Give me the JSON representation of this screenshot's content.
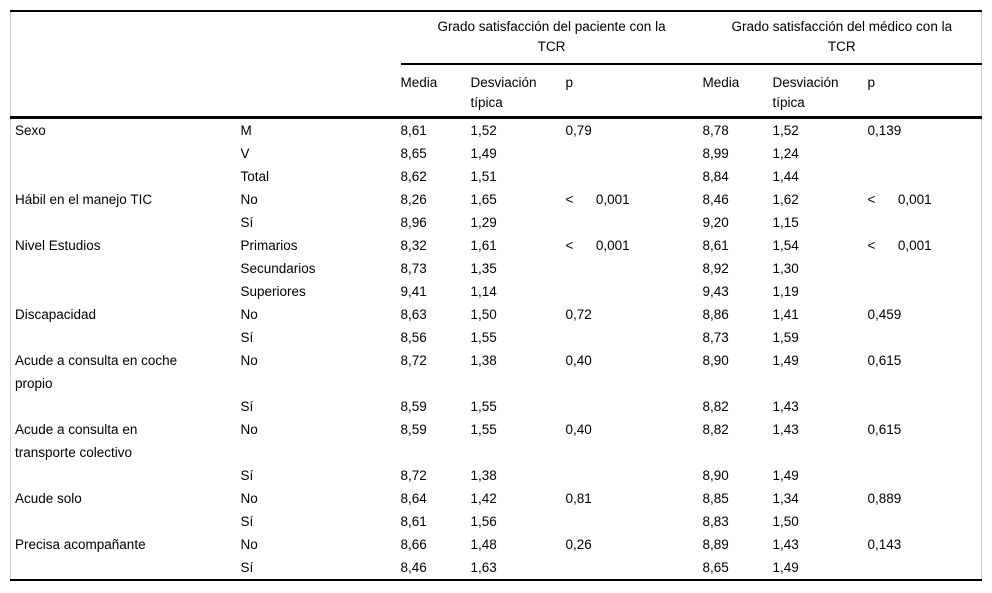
{
  "table": {
    "group_headers": [
      {
        "label": "Grado satisfacción del paciente con la\nTCR"
      },
      {
        "label": "Grado satisfacción del médico con la\nTCR"
      }
    ],
    "sub_headers": {
      "media_paciente": "Media",
      "sd_paciente": "Desviación típica",
      "p_paciente": "p",
      "media_medico": "Media",
      "sd_medico": "Desviación típica",
      "p_medico": "p"
    },
    "rows": [
      {
        "label": "Sexo",
        "category": "M",
        "m1": "8,61",
        "sd1": "1,52",
        "p1": "0,79",
        "m2": "8,78",
        "sd2": "1,52",
        "p2": "0,139"
      },
      {
        "label": "",
        "category": "V",
        "m1": "8,65",
        "sd1": "1,49",
        "p1": "",
        "m2": "8,99",
        "sd2": "1,24",
        "p2": ""
      },
      {
        "label": "",
        "category": "Total",
        "m1": "8,62",
        "sd1": "1,51",
        "p1": "",
        "m2": "8,84",
        "sd2": "1,44",
        "p2": ""
      },
      {
        "label": "Hábil en el manejo TIC",
        "category": "No",
        "m1": "8,26",
        "sd1": "1,65",
        "p1": "<      0,001",
        "m2": "8,46",
        "sd2": "1,62",
        "p2": "<      0,001"
      },
      {
        "label": "",
        "category": "Sí",
        "m1": "8,96",
        "sd1": "1,29",
        "p1": "",
        "m2": "9,20",
        "sd2": "1,15",
        "p2": ""
      },
      {
        "label": "Nivel Estudios",
        "category": "Primarios",
        "m1": "8,32",
        "sd1": "1,61",
        "p1": "<      0,001",
        "m2": "8,61",
        "sd2": "1,54",
        "p2": "<      0,001"
      },
      {
        "label": "",
        "category": "Secundarios",
        "m1": "8,73",
        "sd1": "1,35",
        "p1": "",
        "m2": "8,92",
        "sd2": "1,30",
        "p2": ""
      },
      {
        "label": "",
        "category": "Superiores",
        "m1": "9,41",
        "sd1": "1,14",
        "p1": "",
        "m2": "9,43",
        "sd2": "1,19",
        "p2": ""
      },
      {
        "label": "Discapacidad",
        "category": "No",
        "m1": "8,63",
        "sd1": "1,50",
        "p1": "0,72",
        "m2": "8,86",
        "sd2": "1,41",
        "p2": "0,459"
      },
      {
        "label": "",
        "category": "Sí",
        "m1": "8,56",
        "sd1": "1,55",
        "p1": "",
        "m2": "8,73",
        "sd2": "1,59",
        "p2": ""
      },
      {
        "label": "Acude a consulta en coche\npropio",
        "category": "No",
        "m1": "8,72",
        "sd1": "1,38",
        "p1": "0,40",
        "m2": "8,90",
        "sd2": "1,49",
        "p2": "0,615"
      },
      {
        "label": "",
        "category": "Sí",
        "m1": "8,59",
        "sd1": "1,55",
        "p1": "",
        "m2": "8,82",
        "sd2": "1,43",
        "p2": ""
      },
      {
        "label": "Acude a consulta en\ntransporte colectivo",
        "category": "No",
        "m1": "8,59",
        "sd1": "1,55",
        "p1": "0,40",
        "m2": "8,82",
        "sd2": "1,43",
        "p2": "0,615"
      },
      {
        "label": "",
        "category": "Sí",
        "m1": "8,72",
        "sd1": "1,38",
        "p1": "",
        "m2": "8,90",
        "sd2": "1,49",
        "p2": ""
      },
      {
        "label": "Acude solo",
        "category": "No",
        "m1": "8,64",
        "sd1": "1,42",
        "p1": "0,81",
        "m2": "8,85",
        "sd2": "1,34",
        "p2": "0,889"
      },
      {
        "label": "",
        "category": "Sí",
        "m1": "8,61",
        "sd1": "1,56",
        "p1": "",
        "m2": "8,83",
        "sd2": "1,50",
        "p2": ""
      },
      {
        "label": "Precisa acompañante",
        "category": "No",
        "m1": "8,66",
        "sd1": "1,48",
        "p1": "0,26",
        "m2": "8,89",
        "sd2": "1,43",
        "p2": "0,143"
      },
      {
        "label": "",
        "category": "Sí",
        "m1": "8,46",
        "sd1": "1,63",
        "p1": "",
        "m2": "8,65",
        "sd2": "1,49",
        "p2": ""
      }
    ]
  }
}
